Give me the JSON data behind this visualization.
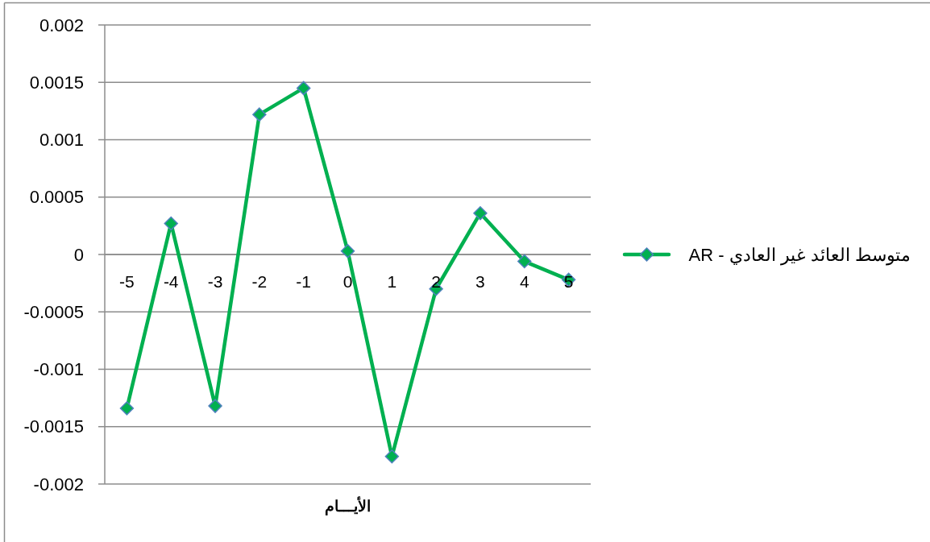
{
  "chart_data": {
    "type": "line",
    "xlabel": "الأيـــام",
    "categories": [
      "-5",
      "-4",
      "-3",
      "-2",
      "-1",
      "0",
      "1",
      "2",
      "3",
      "4",
      "5"
    ],
    "series": [
      {
        "name": "متوسط العائد غير العادي - AR",
        "color": "#00b050",
        "values": [
          -0.00134,
          0.00027,
          -0.00132,
          0.00122,
          0.00145,
          3e-05,
          -0.00176,
          -0.0003,
          0.00036,
          -6e-05,
          -0.00022
        ]
      }
    ],
    "ylim": [
      -0.002,
      0.002
    ],
    "yticks": [
      -0.002,
      -0.0015,
      -0.001,
      -0.0005,
      0,
      0.0005,
      0.001,
      0.0015,
      0.002
    ],
    "grid": "y",
    "legend": "right",
    "marker": "diamond",
    "line_style": "solid"
  }
}
